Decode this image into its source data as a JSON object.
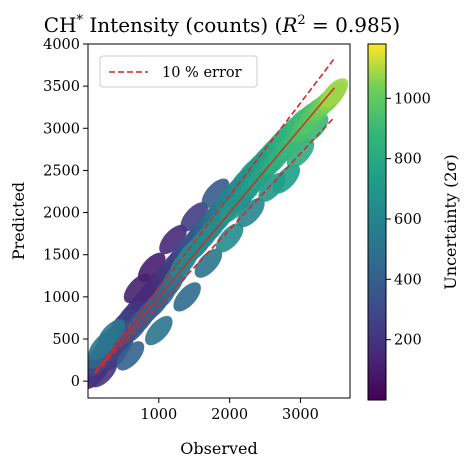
{
  "chart_data": {
    "type": "scatter",
    "title": "CH* Intensity (counts) (R² = 0.985)",
    "title_parts": {
      "prefix": "CH",
      "superscript": "*",
      "middle": " Intensity (counts) (",
      "r_symbol": "R",
      "r_exponent": "2",
      "r_value": " = 0.985)"
    },
    "xlabel": "Observed",
    "ylabel": "Predicted",
    "xlim": [
      0,
      3700
    ],
    "ylim": [
      -200,
      4000
    ],
    "xticks": [
      1000,
      2000,
      3000
    ],
    "yticks": [
      0,
      500,
      1000,
      1500,
      2000,
      2500,
      3000,
      3500,
      4000
    ],
    "colorbar": {
      "label": "Uncertainty (2σ)",
      "colormap": "viridis",
      "range": [
        0,
        1180
      ],
      "ticks": [
        200,
        400,
        600,
        800,
        1000
      ]
    },
    "legend": {
      "placement": "top-left",
      "entries": [
        {
          "label": "10 % error",
          "style": "dashed",
          "color": "#d62728"
        }
      ]
    },
    "reference_lines": [
      {
        "name": "identity",
        "style": "solid",
        "color": "#d62728",
        "x": [
          100,
          3480
        ],
        "y": [
          100,
          3480
        ]
      },
      {
        "name": "plus_10pct",
        "style": "dashed",
        "color": "#d62728",
        "x": [
          100,
          3480
        ],
        "y": [
          110,
          3828
        ]
      },
      {
        "name": "minus_10pct",
        "style": "dashed",
        "color": "#d62728",
        "x": [
          100,
          3480
        ],
        "y": [
          90,
          3132
        ]
      }
    ],
    "series": [
      {
        "points": [
          [
            100,
            80,
            120
          ],
          [
            120,
            150,
            180
          ],
          [
            150,
            230,
            300
          ],
          [
            180,
            320,
            420
          ],
          [
            200,
            420,
            520
          ],
          [
            220,
            100,
            200
          ],
          [
            250,
            320,
            280
          ],
          [
            300,
            480,
            360
          ],
          [
            330,
            560,
            520
          ],
          [
            380,
            300,
            230
          ],
          [
            400,
            550,
            300
          ],
          [
            450,
            400,
            260
          ],
          [
            500,
            680,
            250
          ],
          [
            550,
            560,
            300
          ],
          [
            600,
            780,
            200
          ],
          [
            650,
            620,
            350
          ],
          [
            700,
            880,
            150
          ],
          [
            750,
            720,
            380
          ],
          [
            800,
            980,
            160
          ],
          [
            850,
            820,
            360
          ],
          [
            900,
            1080,
            140
          ],
          [
            950,
            900,
            400
          ],
          [
            1000,
            1180,
            150
          ],
          [
            1050,
            1000,
            420
          ],
          [
            1100,
            1270,
            200
          ],
          [
            1150,
            1120,
            450
          ],
          [
            1200,
            1380,
            230
          ],
          [
            1250,
            1250,
            520
          ],
          [
            1300,
            1480,
            250
          ],
          [
            1350,
            1400,
            600
          ],
          [
            1400,
            1580,
            300
          ],
          [
            1450,
            1520,
            640
          ],
          [
            1500,
            1680,
            330
          ],
          [
            1550,
            1600,
            560
          ],
          [
            1600,
            1790,
            360
          ],
          [
            1650,
            1700,
            640
          ],
          [
            1700,
            1880,
            420
          ],
          [
            1750,
            1800,
            580
          ],
          [
            1800,
            1980,
            480
          ],
          [
            1850,
            1900,
            650
          ],
          [
            1900,
            2080,
            540
          ],
          [
            1950,
            2000,
            620
          ],
          [
            2000,
            2180,
            600
          ],
          [
            2050,
            2050,
            700
          ],
          [
            2100,
            2280,
            600
          ],
          [
            2150,
            2150,
            560
          ],
          [
            2200,
            2380,
            650
          ],
          [
            2250,
            2250,
            700
          ],
          [
            2300,
            2480,
            680
          ],
          [
            2350,
            2350,
            740
          ],
          [
            2400,
            2560,
            700
          ],
          [
            2450,
            2450,
            760
          ],
          [
            2500,
            2650,
            720
          ],
          [
            2550,
            2540,
            780
          ],
          [
            2600,
            2740,
            760
          ],
          [
            2650,
            2620,
            820
          ],
          [
            2700,
            2830,
            800
          ],
          [
            2750,
            2720,
            850
          ],
          [
            2800,
            2920,
            840
          ],
          [
            2850,
            2800,
            880
          ],
          [
            2900,
            3000,
            860
          ],
          [
            2950,
            2900,
            900
          ],
          [
            3000,
            3080,
            900
          ],
          [
            3050,
            3000,
            940
          ],
          [
            3100,
            3140,
            920
          ],
          [
            3150,
            3100,
            960
          ],
          [
            3200,
            3200,
            960
          ],
          [
            3250,
            3200,
            980
          ],
          [
            3300,
            3260,
            1000
          ],
          [
            3350,
            3300,
            1020
          ],
          [
            3400,
            3330,
            1040
          ],
          [
            3450,
            3380,
            1060
          ],
          [
            3480,
            3420,
            1080
          ],
          [
            700,
            1100,
            120
          ],
          [
            900,
            1350,
            110
          ],
          [
            1200,
            1680,
            150
          ],
          [
            1500,
            1950,
            240
          ],
          [
            1800,
            2230,
            380
          ],
          [
            600,
            300,
            420
          ],
          [
            1000,
            600,
            520
          ],
          [
            1400,
            1000,
            460
          ],
          [
            1700,
            1400,
            520
          ],
          [
            2000,
            1700,
            650
          ],
          [
            2300,
            2000,
            600
          ],
          [
            2600,
            2300,
            700
          ],
          [
            2800,
            2400,
            740
          ],
          [
            3000,
            2700,
            820
          ],
          [
            3200,
            3000,
            880
          ]
        ]
      }
    ]
  }
}
